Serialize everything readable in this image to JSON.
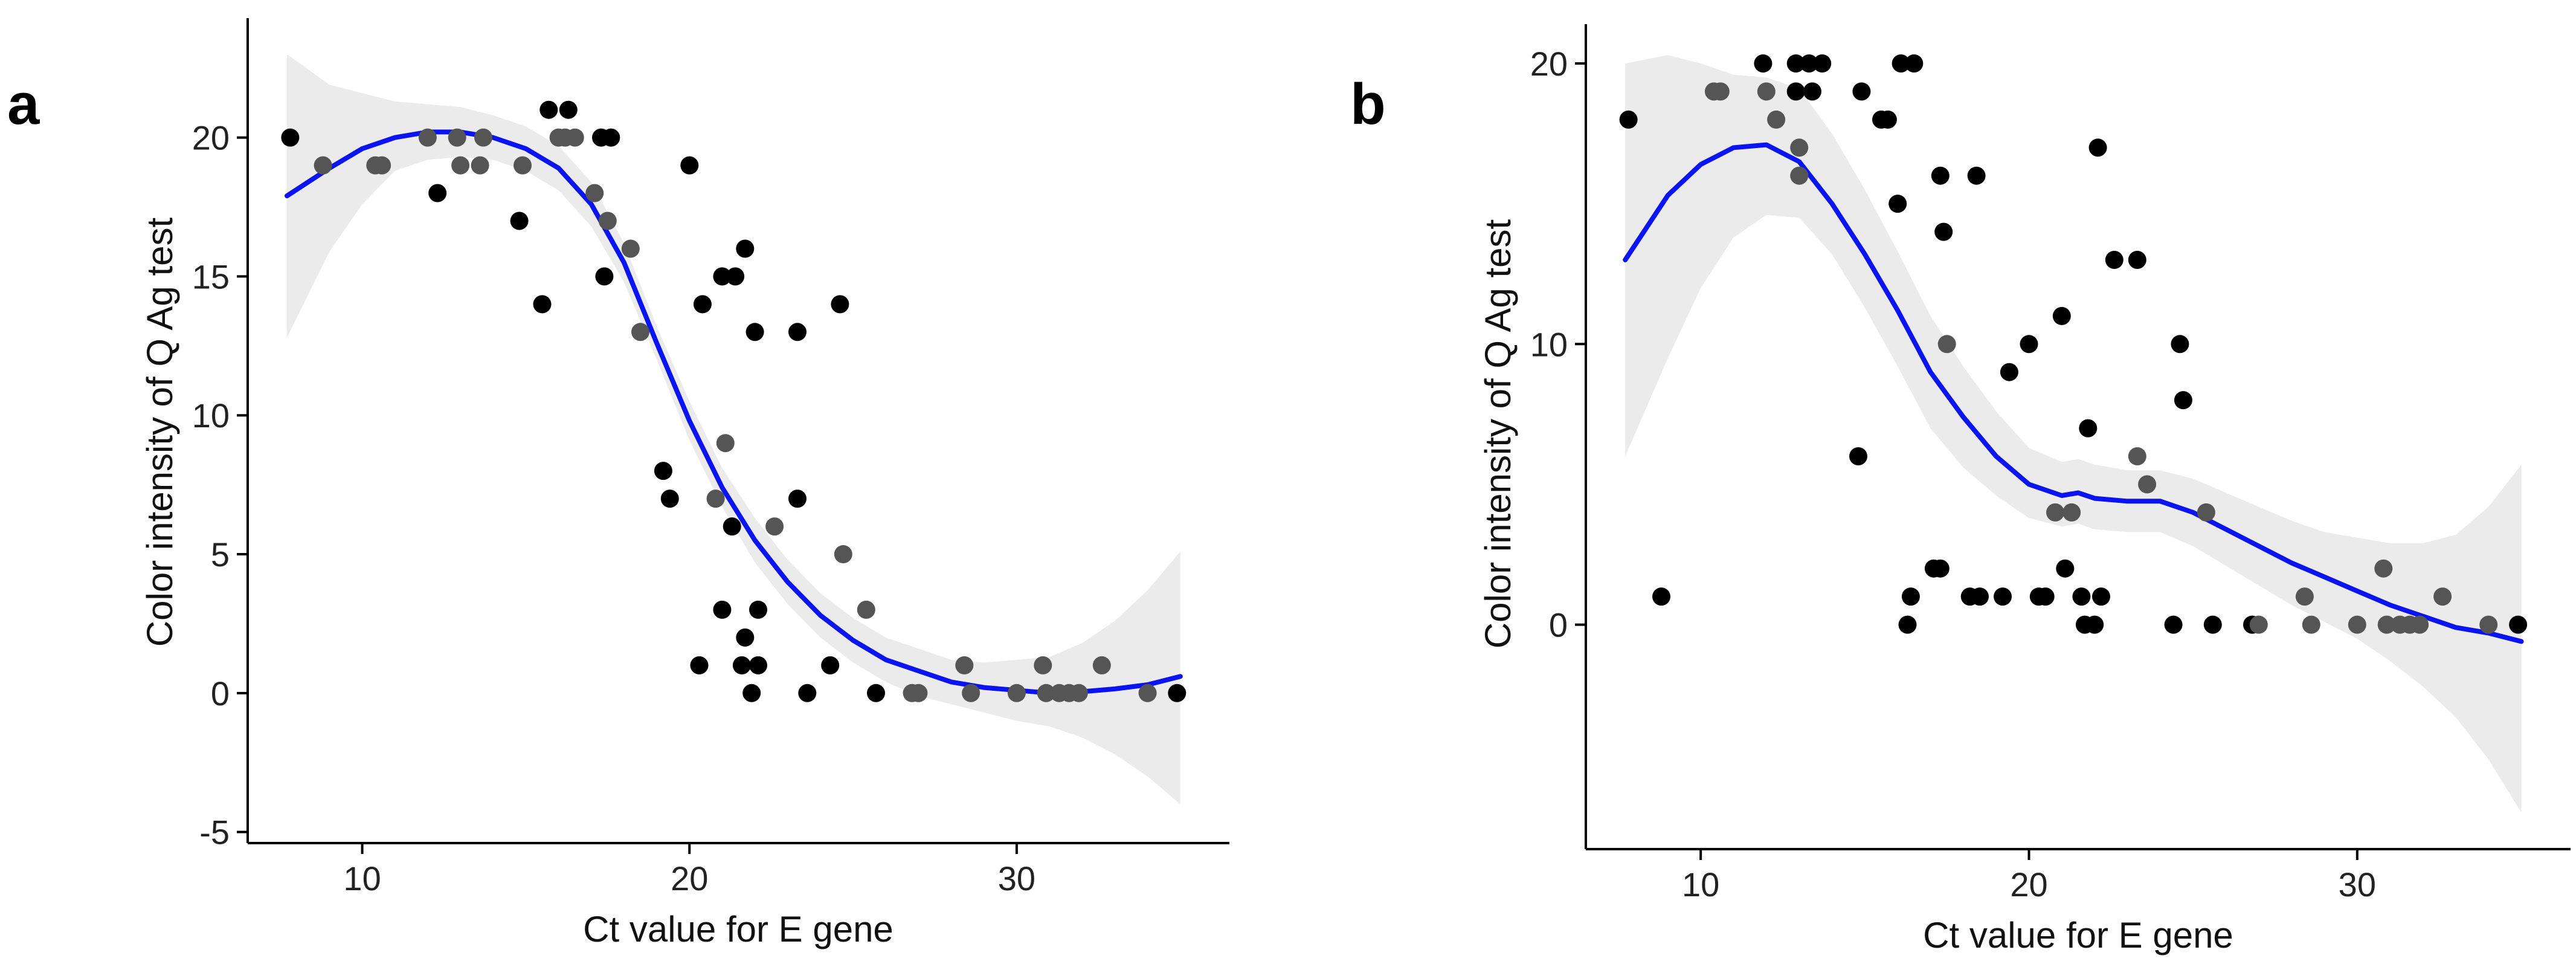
{
  "colors": {
    "fit_line": "#0a14f0",
    "ci_band": "#ebebeb",
    "point_dark": "#000000",
    "point_grey": "#555555"
  },
  "chart_data": [
    {
      "type": "scatter",
      "panel": "a",
      "xlabel": "Ct value for E gene",
      "ylabel": "Color intensity of Q Ag test",
      "xlim": [
        6.5,
        36.5
      ],
      "ylim": [
        -5.4,
        24.3
      ],
      "x_ticks": [
        10,
        20,
        30
      ],
      "x_tick_labels": [
        "10",
        "20",
        "30"
      ],
      "y_ticks": [
        -5,
        0,
        5,
        10,
        15,
        20
      ],
      "y_tick_labels": [
        "-5",
        "0",
        "5",
        "10",
        "15",
        "20"
      ],
      "grid": false,
      "legend": "none",
      "points": [
        {
          "x": 7.8,
          "y": 20,
          "g": 0
        },
        {
          "x": 8.8,
          "y": 19,
          "g": 1
        },
        {
          "x": 10.4,
          "y": 19,
          "g": 1
        },
        {
          "x": 10.6,
          "y": 19,
          "g": 1
        },
        {
          "x": 12.0,
          "y": 20,
          "g": 1
        },
        {
          "x": 12.3,
          "y": 18,
          "g": 0
        },
        {
          "x": 12.9,
          "y": 20,
          "g": 1
        },
        {
          "x": 13.0,
          "y": 19,
          "g": 1
        },
        {
          "x": 13.6,
          "y": 19,
          "g": 1
        },
        {
          "x": 13.7,
          "y": 20,
          "g": 1
        },
        {
          "x": 14.8,
          "y": 17,
          "g": 0
        },
        {
          "x": 14.9,
          "y": 19,
          "g": 1
        },
        {
          "x": 15.5,
          "y": 14,
          "g": 0
        },
        {
          "x": 15.7,
          "y": 21,
          "g": 0
        },
        {
          "x": 16.0,
          "y": 20,
          "g": 1
        },
        {
          "x": 16.2,
          "y": 20,
          "g": 1
        },
        {
          "x": 16.3,
          "y": 21,
          "g": 0
        },
        {
          "x": 16.5,
          "y": 20,
          "g": 1
        },
        {
          "x": 17.1,
          "y": 18,
          "g": 1
        },
        {
          "x": 17.3,
          "y": 20,
          "g": 0
        },
        {
          "x": 17.4,
          "y": 15,
          "g": 0
        },
        {
          "x": 17.5,
          "y": 17,
          "g": 1
        },
        {
          "x": 17.6,
          "y": 20,
          "g": 0
        },
        {
          "x": 18.2,
          "y": 16,
          "g": 1
        },
        {
          "x": 18.5,
          "y": 13,
          "g": 1
        },
        {
          "x": 19.2,
          "y": 8,
          "g": 0
        },
        {
          "x": 19.4,
          "y": 7,
          "g": 0
        },
        {
          "x": 20.0,
          "y": 19,
          "g": 0
        },
        {
          "x": 20.3,
          "y": 1,
          "g": 0
        },
        {
          "x": 20.4,
          "y": 14,
          "g": 0
        },
        {
          "x": 20.8,
          "y": 7,
          "g": 1
        },
        {
          "x": 21.0,
          "y": 15,
          "g": 0
        },
        {
          "x": 21.0,
          "y": 3,
          "g": 0
        },
        {
          "x": 21.1,
          "y": 9,
          "g": 1
        },
        {
          "x": 21.3,
          "y": 6,
          "g": 0
        },
        {
          "x": 21.4,
          "y": 15,
          "g": 0
        },
        {
          "x": 21.6,
          "y": 1,
          "g": 0
        },
        {
          "x": 21.7,
          "y": 16,
          "g": 0
        },
        {
          "x": 21.7,
          "y": 2,
          "g": 0
        },
        {
          "x": 21.9,
          "y": 0,
          "g": 0
        },
        {
          "x": 22.0,
          "y": 13,
          "g": 0
        },
        {
          "x": 22.1,
          "y": 3,
          "g": 0
        },
        {
          "x": 22.1,
          "y": 1,
          "g": 0
        },
        {
          "x": 22.6,
          "y": 6,
          "g": 1
        },
        {
          "x": 23.3,
          "y": 13,
          "g": 0
        },
        {
          "x": 23.3,
          "y": 7,
          "g": 0
        },
        {
          "x": 23.6,
          "y": 0,
          "g": 0
        },
        {
          "x": 24.3,
          "y": 1,
          "g": 0
        },
        {
          "x": 24.6,
          "y": 14,
          "g": 0
        },
        {
          "x": 24.7,
          "y": 5,
          "g": 1
        },
        {
          "x": 25.4,
          "y": 3,
          "g": 1
        },
        {
          "x": 25.7,
          "y": 0,
          "g": 0
        },
        {
          "x": 26.8,
          "y": 0,
          "g": 1
        },
        {
          "x": 27.0,
          "y": 0,
          "g": 1
        },
        {
          "x": 28.4,
          "y": 1,
          "g": 1
        },
        {
          "x": 28.6,
          "y": 0,
          "g": 1
        },
        {
          "x": 30.0,
          "y": 0,
          "g": 1
        },
        {
          "x": 30.8,
          "y": 1,
          "g": 1
        },
        {
          "x": 30.9,
          "y": 0,
          "g": 1
        },
        {
          "x": 31.3,
          "y": 0,
          "g": 1
        },
        {
          "x": 31.6,
          "y": 0,
          "g": 1
        },
        {
          "x": 31.9,
          "y": 0,
          "g": 1
        },
        {
          "x": 32.6,
          "y": 1,
          "g": 1
        },
        {
          "x": 34.0,
          "y": 0,
          "g": 1
        },
        {
          "x": 34.9,
          "y": 0,
          "g": 0
        }
      ],
      "fit": {
        "x": [
          7.7,
          9,
          10,
          11,
          12,
          13,
          14,
          15,
          16,
          17,
          18,
          19,
          20,
          21,
          22,
          23,
          24,
          25,
          26,
          27,
          28,
          29,
          30,
          31,
          32,
          33,
          34,
          35
        ],
        "y": [
          17.9,
          18.9,
          19.6,
          20.0,
          20.2,
          20.2,
          20.0,
          19.6,
          18.9,
          17.6,
          15.5,
          12.6,
          9.8,
          7.4,
          5.5,
          4.0,
          2.8,
          1.9,
          1.2,
          0.8,
          0.4,
          0.2,
          0.1,
          0.0,
          0.05,
          0.15,
          0.3,
          0.6
        ],
        "lower": [
          12.8,
          15.9,
          17.6,
          18.8,
          19.2,
          19.3,
          19.2,
          18.8,
          18.1,
          16.8,
          14.8,
          12.0,
          9.1,
          6.7,
          4.7,
          3.2,
          2.0,
          1.1,
          0.4,
          -0.1,
          -0.4,
          -0.7,
          -1.0,
          -1.2,
          -1.6,
          -2.2,
          -3.0,
          -4.0
        ],
        "upper": [
          23.0,
          21.9,
          21.6,
          21.3,
          21.2,
          21.1,
          20.8,
          20.4,
          19.7,
          18.4,
          16.2,
          13.2,
          10.5,
          8.1,
          6.3,
          4.8,
          3.6,
          2.7,
          2.0,
          1.6,
          1.2,
          1.1,
          1.2,
          1.3,
          1.8,
          2.6,
          3.7,
          5.1
        ]
      }
    },
    {
      "type": "scatter",
      "panel": "b",
      "xlabel": "Ct value for E gene",
      "ylabel": "Color intensity of Q Ag test",
      "xlim": [
        6.5,
        36.5
      ],
      "ylim": [
        -8.0,
        21.4
      ],
      "x_ticks": [
        10,
        20,
        30
      ],
      "x_tick_labels": [
        "10",
        "20",
        "30"
      ],
      "y_ticks": [
        0,
        10,
        20
      ],
      "y_tick_labels": [
        "0",
        "10",
        "20"
      ],
      "grid": false,
      "legend": "none",
      "points": [
        {
          "x": 7.8,
          "y": 18,
          "g": 0
        },
        {
          "x": 8.8,
          "y": 1,
          "g": 0
        },
        {
          "x": 10.4,
          "y": 19,
          "g": 1
        },
        {
          "x": 10.6,
          "y": 19,
          "g": 1
        },
        {
          "x": 11.9,
          "y": 20,
          "g": 0
        },
        {
          "x": 12.0,
          "y": 19,
          "g": 1
        },
        {
          "x": 12.3,
          "y": 18,
          "g": 1
        },
        {
          "x": 12.9,
          "y": 20,
          "g": 0
        },
        {
          "x": 12.9,
          "y": 19,
          "g": 0
        },
        {
          "x": 13.0,
          "y": 17,
          "g": 1
        },
        {
          "x": 13.0,
          "y": 16,
          "g": 1
        },
        {
          "x": 13.3,
          "y": 20,
          "g": 0
        },
        {
          "x": 13.4,
          "y": 19,
          "g": 0
        },
        {
          "x": 13.7,
          "y": 20,
          "g": 0
        },
        {
          "x": 14.8,
          "y": 6,
          "g": 0
        },
        {
          "x": 14.9,
          "y": 19,
          "g": 0
        },
        {
          "x": 15.5,
          "y": 18,
          "g": 0
        },
        {
          "x": 15.7,
          "y": 18,
          "g": 0
        },
        {
          "x": 16.0,
          "y": 15,
          "g": 0
        },
        {
          "x": 16.1,
          "y": 20,
          "g": 0
        },
        {
          "x": 16.3,
          "y": 0,
          "g": 0
        },
        {
          "x": 16.4,
          "y": 1,
          "g": 0
        },
        {
          "x": 16.5,
          "y": 20,
          "g": 0
        },
        {
          "x": 17.1,
          "y": 2,
          "g": 0
        },
        {
          "x": 17.3,
          "y": 2,
          "g": 0
        },
        {
          "x": 17.3,
          "y": 16,
          "g": 0
        },
        {
          "x": 17.4,
          "y": 14,
          "g": 0
        },
        {
          "x": 17.5,
          "y": 10,
          "g": 1
        },
        {
          "x": 18.2,
          "y": 1,
          "g": 0
        },
        {
          "x": 18.4,
          "y": 16,
          "g": 0
        },
        {
          "x": 18.5,
          "y": 1,
          "g": 0
        },
        {
          "x": 19.2,
          "y": 1,
          "g": 0
        },
        {
          "x": 19.4,
          "y": 9,
          "g": 0
        },
        {
          "x": 20.0,
          "y": 10,
          "g": 0
        },
        {
          "x": 20.3,
          "y": 1,
          "g": 0
        },
        {
          "x": 20.5,
          "y": 1,
          "g": 0
        },
        {
          "x": 20.8,
          "y": 4,
          "g": 1
        },
        {
          "x": 21.0,
          "y": 11,
          "g": 0
        },
        {
          "x": 21.1,
          "y": 2,
          "g": 0
        },
        {
          "x": 21.3,
          "y": 4,
          "g": 1
        },
        {
          "x": 21.6,
          "y": 1,
          "g": 0
        },
        {
          "x": 21.7,
          "y": 0,
          "g": 0
        },
        {
          "x": 21.8,
          "y": 7,
          "g": 0
        },
        {
          "x": 22.0,
          "y": 0,
          "g": 0
        },
        {
          "x": 22.1,
          "y": 17,
          "g": 0
        },
        {
          "x": 22.2,
          "y": 1,
          "g": 0
        },
        {
          "x": 22.6,
          "y": 13,
          "g": 0
        },
        {
          "x": 23.3,
          "y": 13,
          "g": 0
        },
        {
          "x": 23.3,
          "y": 6,
          "g": 1
        },
        {
          "x": 23.6,
          "y": 5,
          "g": 1
        },
        {
          "x": 24.4,
          "y": 0,
          "g": 0
        },
        {
          "x": 24.6,
          "y": 10,
          "g": 0
        },
        {
          "x": 24.7,
          "y": 8,
          "g": 0
        },
        {
          "x": 25.4,
          "y": 4,
          "g": 1
        },
        {
          "x": 25.6,
          "y": 0,
          "g": 0
        },
        {
          "x": 26.8,
          "y": 0,
          "g": 0
        },
        {
          "x": 27.0,
          "y": 0,
          "g": 1
        },
        {
          "x": 28.4,
          "y": 1,
          "g": 1
        },
        {
          "x": 28.6,
          "y": 0,
          "g": 1
        },
        {
          "x": 30.0,
          "y": 0,
          "g": 1
        },
        {
          "x": 30.8,
          "y": 2,
          "g": 1
        },
        {
          "x": 30.9,
          "y": 0,
          "g": 1
        },
        {
          "x": 31.3,
          "y": 0,
          "g": 1
        },
        {
          "x": 31.6,
          "y": 0,
          "g": 1
        },
        {
          "x": 31.9,
          "y": 0,
          "g": 1
        },
        {
          "x": 32.6,
          "y": 1,
          "g": 1
        },
        {
          "x": 34.0,
          "y": 0,
          "g": 1
        },
        {
          "x": 34.9,
          "y": 0,
          "g": 0
        }
      ],
      "fit": {
        "x": [
          7.7,
          9,
          10,
          11,
          12,
          13,
          14,
          15,
          16,
          17,
          18,
          19,
          20,
          21,
          21.5,
          22,
          23,
          24,
          25,
          26,
          27,
          28,
          29,
          30,
          31,
          32,
          33,
          34,
          35
        ],
        "y": [
          13.0,
          15.3,
          16.4,
          17.0,
          17.1,
          16.5,
          15.0,
          13.2,
          11.2,
          9.0,
          7.4,
          6.0,
          5.0,
          4.6,
          4.7,
          4.5,
          4.4,
          4.4,
          4.0,
          3.4,
          2.8,
          2.2,
          1.7,
          1.2,
          0.7,
          0.3,
          -0.1,
          -0.3,
          -0.6
        ],
        "lower": [
          6.0,
          9.5,
          12.0,
          13.8,
          14.6,
          14.5,
          13.2,
          11.3,
          9.2,
          7.0,
          5.6,
          4.6,
          3.8,
          3.5,
          3.6,
          3.4,
          3.3,
          3.3,
          2.8,
          2.1,
          1.4,
          0.7,
          0.1,
          -0.5,
          -1.3,
          -2.2,
          -3.3,
          -4.8,
          -6.7
        ],
        "upper": [
          20.0,
          20.3,
          20.0,
          19.6,
          19.5,
          19.1,
          17.5,
          15.5,
          13.3,
          11.0,
          9.2,
          7.6,
          6.3,
          5.8,
          5.9,
          5.7,
          5.5,
          5.5,
          5.2,
          4.7,
          4.2,
          3.7,
          3.3,
          3.1,
          2.9,
          2.9,
          3.2,
          4.2,
          5.7
        ]
      }
    }
  ]
}
